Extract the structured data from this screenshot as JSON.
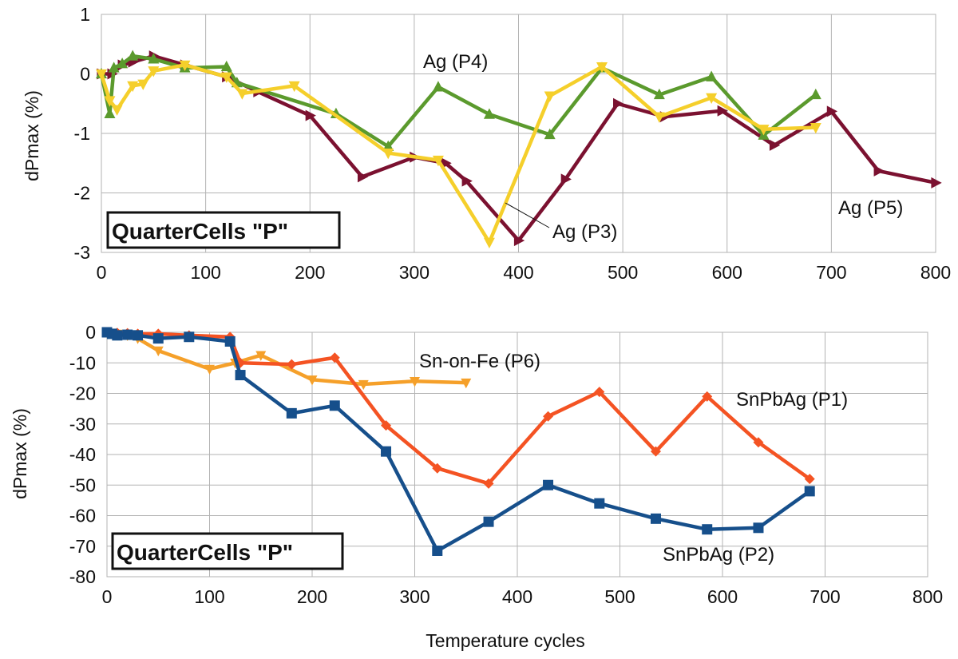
{
  "chart_data": [
    {
      "type": "line",
      "ylabel": "dPmax (%)",
      "xlim": [
        0,
        800
      ],
      "ylim": [
        -3,
        1
      ],
      "x_ticks": [
        0,
        100,
        200,
        300,
        400,
        500,
        600,
        700,
        800
      ],
      "y_ticks": [
        1,
        0,
        -1,
        -2,
        -3
      ],
      "grid": true,
      "box_label": "QuarterCells \"P\"",
      "series": [
        {
          "name": "Ag (P5)",
          "color": "#7b1130",
          "marker": "triangle-right",
          "x": [
            0,
            10,
            20,
            30,
            50,
            80,
            120,
            150,
            200,
            250,
            300,
            330,
            350,
            400,
            445,
            495,
            540,
            595,
            645,
            700,
            745,
            800
          ],
          "y": [
            0.0,
            0.0,
            0.15,
            0.2,
            0.3,
            0.15,
            -0.05,
            -0.3,
            -0.7,
            -1.73,
            -1.4,
            -1.5,
            -1.8,
            -2.8,
            -1.77,
            -0.5,
            -0.72,
            -0.62,
            -1.2,
            -0.63,
            -1.63,
            -1.83
          ]
        },
        {
          "name": "Ag (P4)",
          "color": "#5b9a2d",
          "marker": "triangle-up",
          "x": [
            0,
            8,
            12,
            20,
            30,
            50,
            80,
            120,
            130,
            225,
            275,
            323,
            372,
            430,
            480,
            535,
            585,
            635,
            685
          ],
          "y": [
            0.0,
            -0.67,
            0.1,
            0.17,
            0.3,
            0.25,
            0.1,
            0.12,
            -0.15,
            -0.67,
            -1.22,
            -0.22,
            -0.68,
            -1.02,
            0.1,
            -0.35,
            -0.05,
            -1.03,
            -0.35
          ]
        },
        {
          "name": "Ag (P3)",
          "color": "#f5cf2b",
          "marker": "triangle-down",
          "x": [
            0,
            8,
            15,
            30,
            40,
            50,
            80,
            120,
            135,
            185,
            275,
            323,
            372,
            430,
            480,
            535,
            585,
            635,
            685
          ],
          "y": [
            0.0,
            -0.45,
            -0.6,
            -0.2,
            -0.17,
            0.05,
            0.15,
            -0.05,
            -0.33,
            -0.2,
            -1.33,
            -1.45,
            -2.83,
            -0.37,
            0.12,
            -0.72,
            -0.4,
            -0.93,
            -0.9
          ]
        }
      ],
      "annotations": [
        {
          "text": "Ag (P4)",
          "series": "Ag (P4)"
        },
        {
          "text": "Ag (P3)",
          "series": "Ag (P3)"
        },
        {
          "text": "Ag (P5)",
          "series": "Ag (P5)"
        }
      ]
    },
    {
      "type": "line",
      "xlabel": "Temperature cycles",
      "ylabel": "dPmax (%)",
      "xlim": [
        0,
        800
      ],
      "ylim": [
        -80,
        0
      ],
      "x_ticks": [
        0,
        100,
        200,
        300,
        400,
        500,
        600,
        700,
        800
      ],
      "y_ticks": [
        0,
        -10,
        -20,
        -30,
        -40,
        -50,
        -60,
        -70,
        -80
      ],
      "grid": true,
      "box_label": "QuarterCells \"P\"",
      "series": [
        {
          "name": "Sn-on-Fe (P6)",
          "color": "#f5a02a",
          "marker": "triangle-down",
          "x": [
            0,
            10,
            20,
            30,
            50,
            100,
            125,
            150,
            200,
            250,
            300,
            350
          ],
          "y": [
            0,
            -0.5,
            -1,
            -2,
            -6,
            -12,
            -10,
            -7.5,
            -15.5,
            -17,
            -16,
            -16.5
          ]
        },
        {
          "name": "SnPbAg (P1)",
          "color": "#f45323",
          "marker": "diamond",
          "x": [
            0,
            10,
            20,
            30,
            50,
            80,
            120,
            130,
            180,
            222,
            272,
            322,
            372,
            430,
            480,
            535,
            585,
            635,
            685
          ],
          "y": [
            0,
            -0.2,
            -0.3,
            -0.5,
            -0.5,
            -1,
            -1.5,
            -10,
            -10.5,
            -8.3,
            -30.5,
            -44.5,
            -49.5,
            -27.5,
            -19.5,
            -39,
            -21,
            -36,
            -48
          ]
        },
        {
          "name": "SnPbAg (P2)",
          "color": "#164f8b",
          "marker": "square",
          "x": [
            0,
            5,
            10,
            20,
            30,
            50,
            80,
            120,
            130,
            180,
            222,
            272,
            322,
            372,
            430,
            480,
            535,
            585,
            635,
            685
          ],
          "y": [
            0,
            -0.5,
            -1,
            -0.8,
            -1,
            -2,
            -1.5,
            -3,
            -14,
            -26.5,
            -24,
            -39,
            -71.5,
            -62,
            -50,
            -56,
            -61,
            -64.5,
            -64,
            -52
          ]
        }
      ],
      "annotations": [
        {
          "text": "Sn-on-Fe (P6)",
          "series": "Sn-on-Fe (P6)"
        },
        {
          "text": "SnPbAg (P1)",
          "series": "SnPbAg (P1)"
        },
        {
          "text": "SnPbAg (P2)",
          "series": "SnPbAg (P2)"
        }
      ]
    }
  ]
}
